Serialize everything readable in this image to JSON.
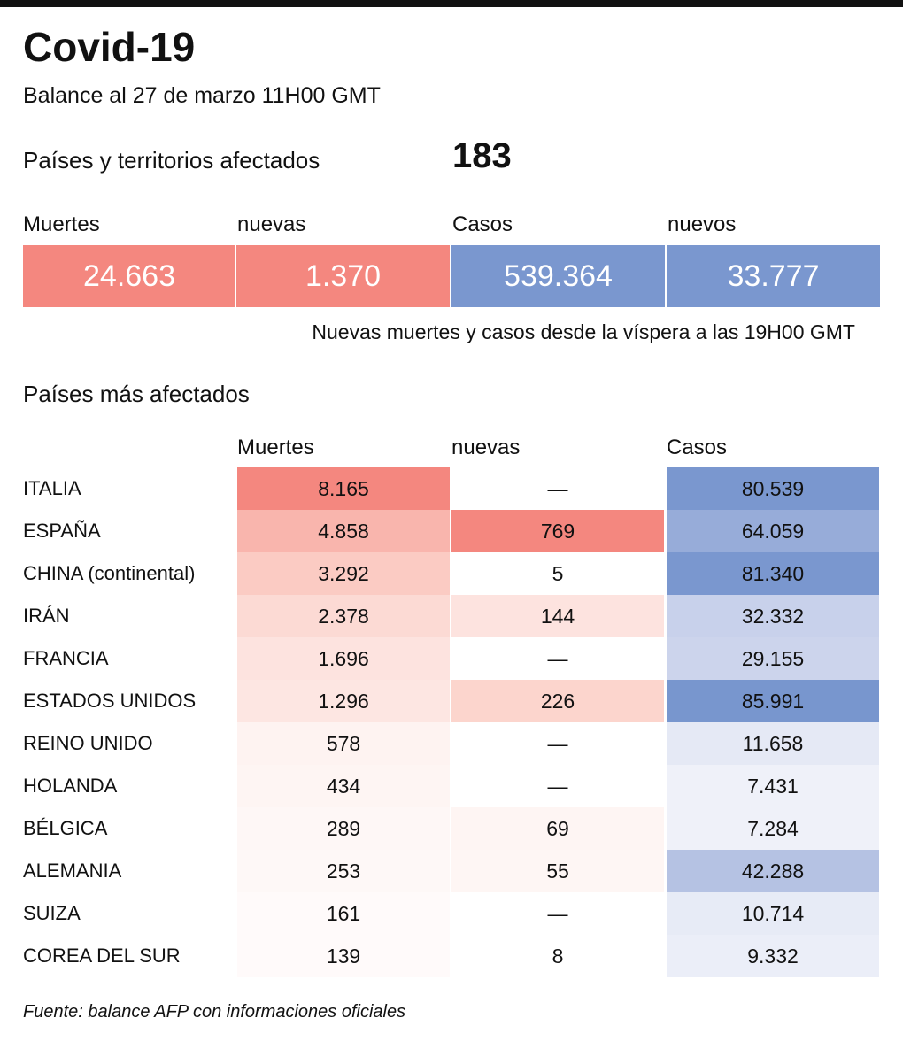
{
  "header": {
    "title": "Covid-19",
    "subtitle": "Balance al 27 de marzo 11H00 GMT"
  },
  "countries": {
    "label": "Países y territorios afectados",
    "value": "183"
  },
  "summary": {
    "labels": [
      "Muertes",
      "nuevas",
      "Casos",
      "nuevos"
    ],
    "values": [
      "24.663",
      "1.370",
      "539.364",
      "33.777"
    ],
    "colors": [
      "#f4877f",
      "#f4877f",
      "#7a97cf",
      "#7a97cf"
    ],
    "note": "Nuevas muertes y casos desde la víspera a las 19H00 GMT"
  },
  "table": {
    "title": "Países más afectados",
    "columns": [
      "Muertes",
      "nuevas",
      "Casos"
    ],
    "rows": [
      [
        "ITALIA",
        "8.165",
        "—",
        "80.539"
      ],
      [
        "ESPAÑA",
        "4.858",
        "769",
        "64.059"
      ],
      [
        "CHINA (continental)",
        "3.292",
        "5",
        "81.340"
      ],
      [
        "IRÁN",
        "2.378",
        "144",
        "32.332"
      ],
      [
        "FRANCIA",
        "1.696",
        "—",
        "29.155"
      ],
      [
        "ESTADOS UNIDOS",
        "1.296",
        "226",
        "85.991"
      ],
      [
        "REINO UNIDO",
        "578",
        "—",
        "11.658"
      ],
      [
        "HOLANDA",
        "434",
        "—",
        "7.431"
      ],
      [
        "BÉLGICA",
        "289",
        "69",
        "7.284"
      ],
      [
        "ALEMANIA",
        "253",
        "55",
        "42.288"
      ],
      [
        "SUIZA",
        "161",
        "—",
        "10.714"
      ],
      [
        "COREA DEL SUR",
        "139",
        "8",
        "9.332"
      ]
    ],
    "colors": [
      [
        "#f4877f",
        "#ffffff",
        "#7a97cf"
      ],
      [
        "#f9b5ad",
        "#f4877f",
        "#97acd9"
      ],
      [
        "#fbcbc3",
        "#ffffff",
        "#7a97cf"
      ],
      [
        "#fcdad4",
        "#fde3df",
        "#c8d1eb"
      ],
      [
        "#fde3df",
        "#ffffff",
        "#ccd4ec"
      ],
      [
        "#fde6e2",
        "#fcd5cd",
        "#7896ce"
      ],
      [
        "#fef3f1",
        "#ffffff",
        "#e5e9f5"
      ],
      [
        "#fef5f3",
        "#ffffff",
        "#eff1f9"
      ],
      [
        "#fef7f6",
        "#fef5f3",
        "#eff1f9"
      ],
      [
        "#fef8f7",
        "#fef6f4",
        "#b5c2e3"
      ],
      [
        "#fffafa",
        "#ffffff",
        "#e7ebf6"
      ],
      [
        "#fffafa",
        "#ffffff",
        "#ebeef8"
      ]
    ]
  },
  "source": "Fuente: balance AFP con informaciones oficiales"
}
